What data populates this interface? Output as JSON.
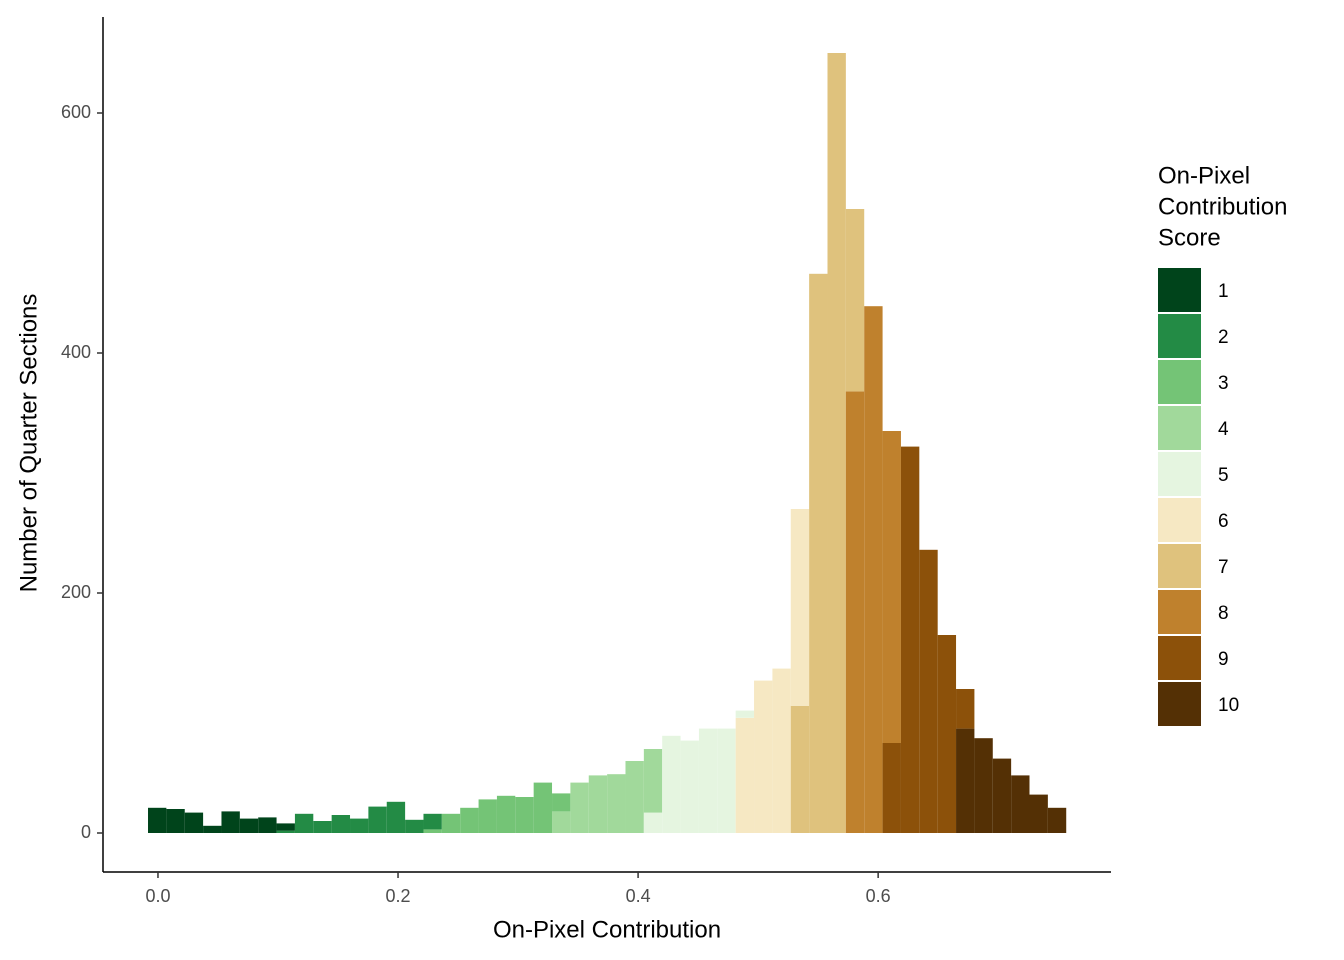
{
  "chart_data": {
    "type": "histogram",
    "x_label": "On-Pixel Contribution",
    "y_label": "Number of Quarter Sections",
    "legend_title": [
      "On-Pixel",
      "Contribution",
      "Score"
    ],
    "legend_position": "right",
    "stacked": true,
    "bins": [
      -0.0083,
      0.007,
      0.0223,
      0.0376,
      0.0529,
      0.0682,
      0.0835,
      0.0988,
      0.1141,
      0.1294,
      0.1447,
      0.16,
      0.1753,
      0.1906,
      0.2059,
      0.2212,
      0.2365,
      0.2518,
      0.2671,
      0.2824,
      0.2977,
      0.313,
      0.3283,
      0.3436,
      0.3589,
      0.3742,
      0.3895,
      0.4048,
      0.4201,
      0.4354,
      0.4507,
      0.466,
      0.4813,
      0.4966,
      0.5119,
      0.5272,
      0.5425,
      0.5578,
      0.5731,
      0.5884,
      0.6037,
      0.619,
      0.6343,
      0.6496,
      0.6649,
      0.6802,
      0.6955,
      0.7108,
      0.7261,
      0.7414,
      0.7567
    ],
    "series": [
      {
        "name": "1",
        "color": "#00441b",
        "values": [
          21,
          20,
          17,
          6,
          18,
          12,
          13,
          6,
          0,
          0,
          0,
          0,
          0,
          0,
          0,
          0,
          0,
          0,
          0,
          0,
          0,
          0,
          0,
          0,
          0,
          0,
          0,
          0,
          0,
          0,
          0,
          0,
          0,
          0,
          0,
          0,
          0,
          0,
          0,
          0,
          0,
          0,
          0,
          0,
          0,
          0,
          0,
          0,
          0,
          0
        ]
      },
      {
        "name": "2",
        "color": "#238b45",
        "values": [
          0,
          0,
          0,
          0,
          0,
          0,
          0,
          2,
          16,
          10,
          15,
          12,
          22,
          26,
          11,
          13,
          0,
          0,
          0,
          0,
          0,
          0,
          0,
          0,
          0,
          0,
          0,
          0,
          0,
          0,
          0,
          0,
          0,
          0,
          0,
          0,
          0,
          0,
          0,
          0,
          0,
          0,
          0,
          0,
          0,
          0,
          0,
          0,
          0,
          0
        ]
      },
      {
        "name": "3",
        "color": "#74c476",
        "values": [
          0,
          0,
          0,
          0,
          0,
          0,
          0,
          0,
          0,
          0,
          0,
          0,
          0,
          0,
          0,
          3,
          16,
          21,
          28,
          31,
          30,
          42,
          15,
          0,
          0,
          0,
          0,
          0,
          0,
          0,
          0,
          0,
          0,
          0,
          0,
          0,
          0,
          0,
          0,
          0,
          0,
          0,
          0,
          0,
          0,
          0,
          0,
          0,
          0,
          0
        ]
      },
      {
        "name": "4",
        "color": "#a1d99b",
        "values": [
          0,
          0,
          0,
          0,
          0,
          0,
          0,
          0,
          0,
          0,
          0,
          0,
          0,
          0,
          0,
          0,
          0,
          0,
          0,
          0,
          0,
          0,
          18,
          42,
          48,
          49,
          60,
          53,
          0,
          0,
          0,
          0,
          0,
          0,
          0,
          0,
          0,
          0,
          0,
          0,
          0,
          0,
          0,
          0,
          0,
          0,
          0,
          0,
          0,
          0
        ]
      },
      {
        "name": "5",
        "color": "#e5f5e0",
        "values": [
          0,
          0,
          0,
          0,
          0,
          0,
          0,
          0,
          0,
          0,
          0,
          0,
          0,
          0,
          0,
          0,
          0,
          0,
          0,
          0,
          0,
          0,
          0,
          0,
          0,
          0,
          0,
          17,
          81,
          77,
          87,
          87,
          6,
          0,
          0,
          0,
          0,
          0,
          0,
          0,
          0,
          0,
          0,
          0,
          0,
          0,
          0,
          0,
          0,
          0
        ]
      },
      {
        "name": "6",
        "color": "#f6e8c3",
        "values": [
          0,
          0,
          0,
          0,
          0,
          0,
          0,
          0,
          0,
          0,
          0,
          0,
          0,
          0,
          0,
          0,
          0,
          0,
          0,
          0,
          0,
          0,
          0,
          0,
          0,
          0,
          0,
          0,
          0,
          0,
          0,
          0,
          96,
          127,
          137,
          164,
          0,
          0,
          0,
          0,
          0,
          0,
          0,
          0,
          0,
          0,
          0,
          0,
          0,
          0
        ]
      },
      {
        "name": "7",
        "color": "#dfc27d",
        "values": [
          0,
          0,
          0,
          0,
          0,
          0,
          0,
          0,
          0,
          0,
          0,
          0,
          0,
          0,
          0,
          0,
          0,
          0,
          0,
          0,
          0,
          0,
          0,
          0,
          0,
          0,
          0,
          0,
          0,
          0,
          0,
          0,
          0,
          0,
          0,
          106,
          466,
          650,
          152,
          0,
          0,
          0,
          0,
          0,
          0,
          0,
          0,
          0,
          0,
          0
        ]
      },
      {
        "name": "8",
        "color": "#bf812d",
        "values": [
          0,
          0,
          0,
          0,
          0,
          0,
          0,
          0,
          0,
          0,
          0,
          0,
          0,
          0,
          0,
          0,
          0,
          0,
          0,
          0,
          0,
          0,
          0,
          0,
          0,
          0,
          0,
          0,
          0,
          0,
          0,
          0,
          0,
          0,
          0,
          0,
          0,
          0,
          368,
          439,
          260,
          0,
          0,
          0,
          0,
          0,
          0,
          0,
          0,
          0
        ]
      },
      {
        "name": "9",
        "color": "#8c510a",
        "values": [
          0,
          0,
          0,
          0,
          0,
          0,
          0,
          0,
          0,
          0,
          0,
          0,
          0,
          0,
          0,
          0,
          0,
          0,
          0,
          0,
          0,
          0,
          0,
          0,
          0,
          0,
          0,
          0,
          0,
          0,
          0,
          0,
          0,
          0,
          0,
          0,
          0,
          0,
          0,
          0,
          75,
          322,
          236,
          165,
          33,
          0,
          0,
          0,
          0,
          0
        ]
      },
      {
        "name": "10",
        "color": "#543005",
        "values": [
          0,
          0,
          0,
          0,
          0,
          0,
          0,
          0,
          0,
          0,
          0,
          0,
          0,
          0,
          0,
          0,
          0,
          0,
          0,
          0,
          0,
          0,
          0,
          0,
          0,
          0,
          0,
          0,
          0,
          0,
          0,
          0,
          0,
          0,
          0,
          0,
          0,
          0,
          0,
          0,
          0,
          0,
          0,
          0,
          87,
          79,
          62,
          48,
          32,
          21
        ]
      }
    ],
    "xlim": [
      -0.0458,
      0.794
    ],
    "ylim": [
      -32.5,
      680
    ],
    "xticks": [
      {
        "value": 0,
        "label": "0.0"
      },
      0.2,
      0.4,
      0.6
    ],
    "yticks": [
      0,
      200,
      400,
      600
    ],
    "grid": false
  }
}
